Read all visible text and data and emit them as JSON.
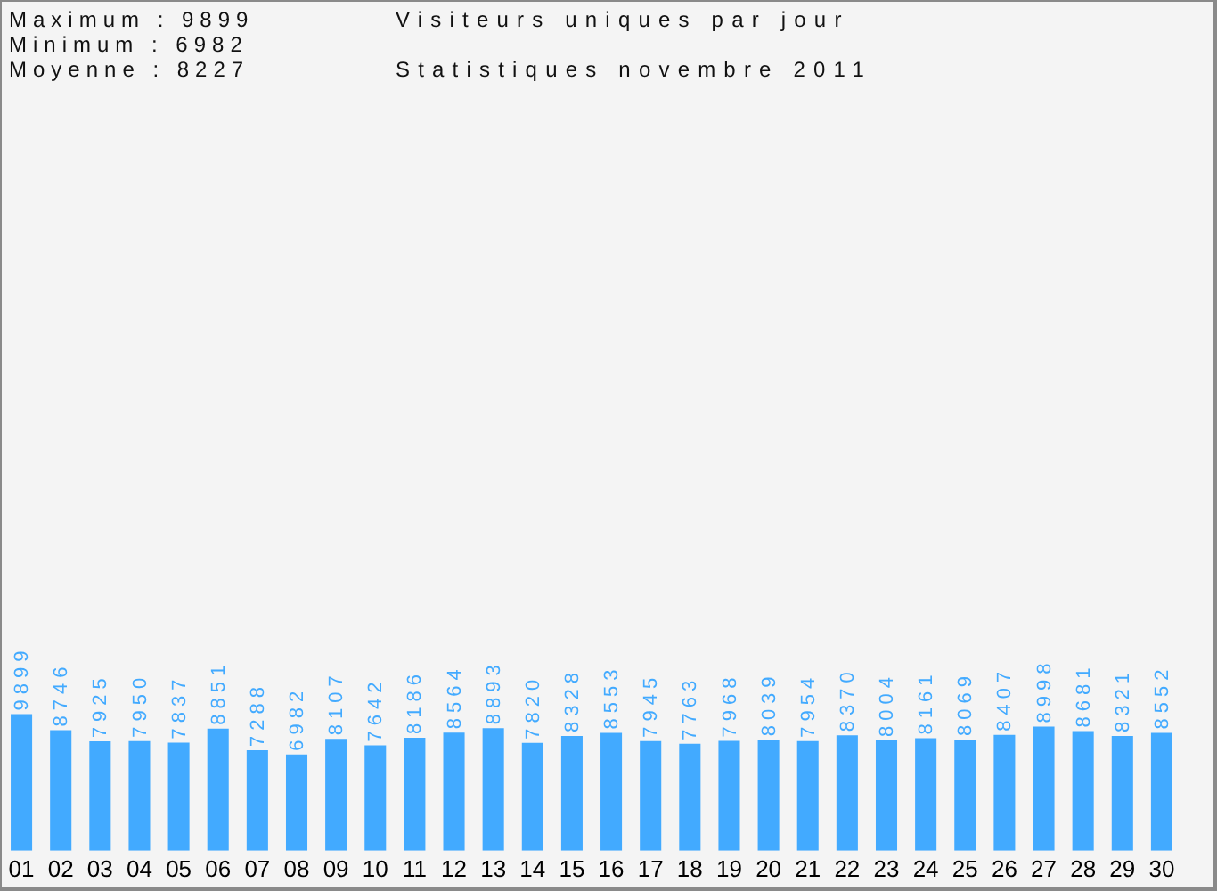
{
  "chart_data": {
    "type": "bar",
    "title": "Visiteurs uniques par jour",
    "subtitle": "Statistiques novembre 2011",
    "annotations": [
      "Maximum : 9899",
      "Minimum : 6982",
      "Moyenne : 8227"
    ],
    "categories": [
      "01",
      "02",
      "03",
      "04",
      "05",
      "06",
      "07",
      "08",
      "09",
      "10",
      "11",
      "12",
      "13",
      "14",
      "15",
      "16",
      "17",
      "18",
      "19",
      "20",
      "21",
      "22",
      "23",
      "24",
      "25",
      "26",
      "27",
      "28",
      "29",
      "30"
    ],
    "values": [
      9899,
      8746,
      7925,
      7950,
      7837,
      8851,
      7288,
      6982,
      8107,
      7642,
      8186,
      8564,
      8893,
      7820,
      8328,
      8553,
      7945,
      7763,
      7968,
      8039,
      7954,
      8370,
      8004,
      8161,
      8069,
      8407,
      8998,
      8681,
      8321,
      8552
    ],
    "color": "#42aaff",
    "data_labels": true
  }
}
